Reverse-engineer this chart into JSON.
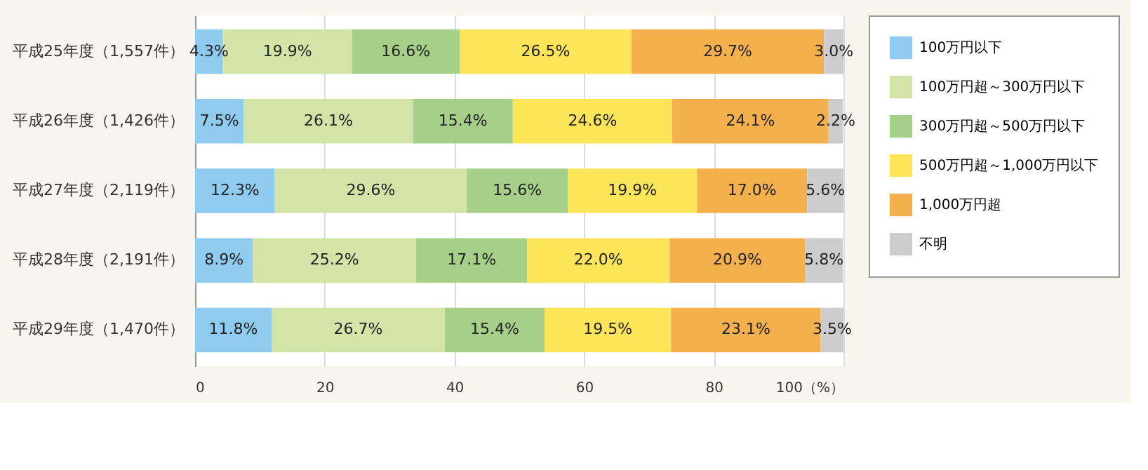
{
  "chart_data": {
    "type": "bar",
    "orientation": "horizontal",
    "stacked": true,
    "categories": [
      "平成25年度（1,557件）",
      "平成26年度（1,426件）",
      "平成27年度（2,119件）",
      "平成28年度（2,191件）",
      "平成29年度（1,470件）"
    ],
    "series": [
      {
        "name": "100万円以下",
        "color": "#8ecbee",
        "values": [
          4.3,
          7.5,
          12.3,
          8.9,
          11.8
        ],
        "value_labels": [
          "4.3%",
          "7.5%",
          "12.3%",
          "8.9%",
          "11.8%"
        ]
      },
      {
        "name": "100万円超～300万円以下",
        "color": "#d3e4a8",
        "values": [
          19.9,
          26.1,
          29.6,
          25.2,
          26.7
        ],
        "value_labels": [
          "19.9%",
          "26.1%",
          "29.6%",
          "25.2%",
          "26.7%"
        ]
      },
      {
        "name": "300万円超～500万円以下",
        "color": "#a6d08a",
        "values": [
          16.6,
          15.4,
          15.6,
          17.1,
          15.4
        ],
        "value_labels": [
          "16.6%",
          "15.4%",
          "15.6%",
          "17.1%",
          "15.4%"
        ]
      },
      {
        "name": "500万円超～1,000万円以下",
        "color": "#fde55a",
        "values": [
          26.5,
          24.6,
          19.9,
          22.0,
          19.5
        ],
        "value_labels": [
          "26.5%",
          "24.6%",
          "19.9%",
          "22.0%",
          "19.5%"
        ]
      },
      {
        "name": "1,000万円超",
        "color": "#f5b04e",
        "values": [
          29.7,
          24.1,
          17.0,
          20.9,
          23.1
        ],
        "value_labels": [
          "29.7%",
          "24.1%",
          "17.0%",
          "20.9%",
          "23.1%"
        ]
      },
      {
        "name": "不明",
        "color": "#cccccc",
        "values": [
          3.0,
          2.2,
          5.6,
          5.8,
          3.5
        ],
        "value_labels": [
          "3.0%",
          "2.2%",
          "5.6%",
          "5.8%",
          "3.5%"
        ]
      }
    ],
    "xlim": [
      0,
      100
    ],
    "xticks": [
      0,
      20,
      40,
      60,
      80,
      {
        "value": 100,
        "label": "100（%）"
      }
    ],
    "grid": "x",
    "legend": "top right"
  }
}
